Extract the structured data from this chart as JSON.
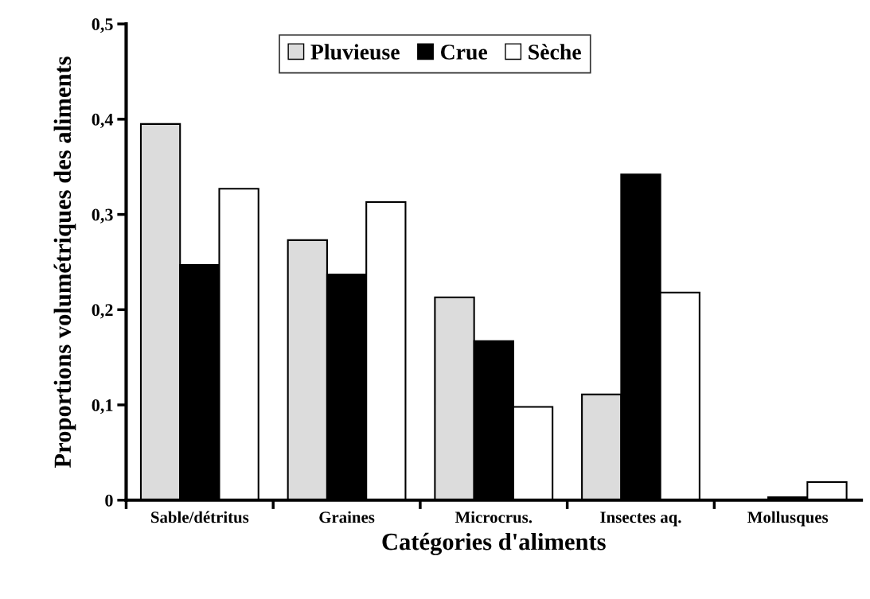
{
  "chart_data": {
    "type": "bar",
    "xlabel": "Catégories d'aliments",
    "ylabel": "Proportions volumétriques des aliments",
    "categories": [
      "Sable/détritus",
      "Graines",
      "Microcrus.",
      "Insectes aq.",
      "Mollusques"
    ],
    "series": [
      {
        "name": "Pluvieuse",
        "color": "#dcdcdc",
        "values": [
          0.395,
          0.273,
          0.213,
          0.111,
          0
        ]
      },
      {
        "name": "Crue",
        "color": "#000000",
        "values": [
          0.247,
          0.237,
          0.167,
          0.342,
          0.003
        ]
      },
      {
        "name": "Sèche",
        "color": "#ffffff",
        "values": [
          0.327,
          0.313,
          0.098,
          0.218,
          0.019
        ]
      }
    ],
    "ylim": [
      0,
      0.5
    ],
    "yticks": [
      {
        "value": 0,
        "label": "0"
      },
      {
        "value": 0.1,
        "label": "0,1"
      },
      {
        "value": 0.2,
        "label": "0,2"
      },
      {
        "value": 0.3,
        "label": "0,3"
      },
      {
        "value": 0.4,
        "label": "0,4"
      },
      {
        "value": 0.5,
        "label": "0,5"
      }
    ],
    "grid": false,
    "legend": "top"
  }
}
